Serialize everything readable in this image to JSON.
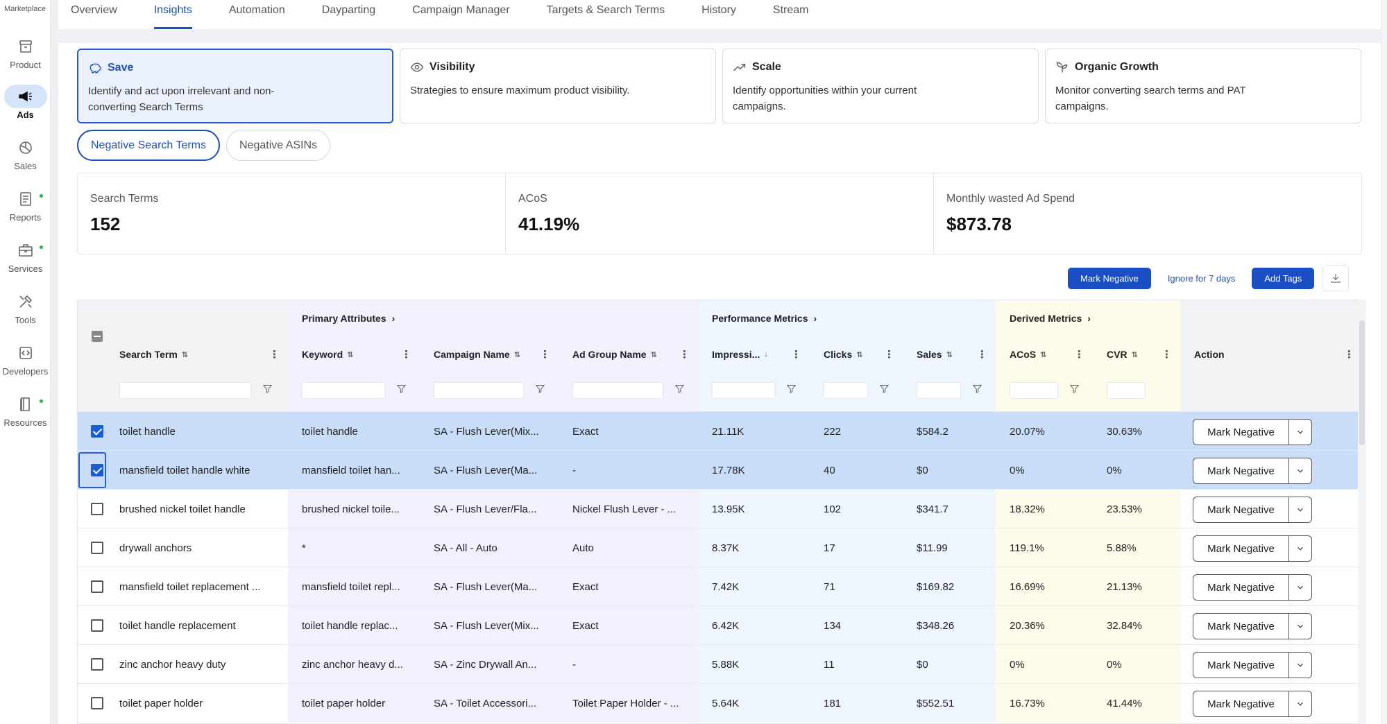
{
  "sidebar": {
    "top_label": "Marketplace",
    "items": [
      {
        "label": "Product",
        "icon": "archive-box-icon",
        "active": false,
        "dot": false
      },
      {
        "label": "Ads",
        "icon": "megaphone-icon",
        "active": true,
        "dot": false
      },
      {
        "label": "Sales",
        "icon": "pie-chart-icon",
        "active": false,
        "dot": false
      },
      {
        "label": "Reports",
        "icon": "report-icon",
        "active": false,
        "dot": true
      },
      {
        "label": "Services",
        "icon": "briefcase-icon",
        "active": false,
        "dot": true
      },
      {
        "label": "Tools",
        "icon": "tools-icon",
        "active": false,
        "dot": false
      },
      {
        "label": "Developers",
        "icon": "code-icon",
        "active": false,
        "dot": false
      },
      {
        "label": "Resources",
        "icon": "book-icon",
        "active": false,
        "dot": true
      }
    ],
    "dot_color": "#2bb24c"
  },
  "tabs": [
    {
      "label": "Overview",
      "active": false
    },
    {
      "label": "Insights",
      "active": true
    },
    {
      "label": "Automation",
      "active": false
    },
    {
      "label": "Dayparting",
      "active": false
    },
    {
      "label": "Campaign Manager",
      "active": false
    },
    {
      "label": "Targets & Search Terms",
      "active": false
    },
    {
      "label": "History",
      "active": false
    },
    {
      "label": "Stream",
      "active": false
    }
  ],
  "strategy_cards": [
    {
      "title": "Save",
      "description": "Identify and act upon irrelevant and non-converting Search Terms",
      "icon": "piggy-bank-icon",
      "active": true
    },
    {
      "title": "Visibility",
      "description": "Strategies to ensure maximum product visibility.",
      "icon": "eye-icon",
      "active": false
    },
    {
      "title": "Scale",
      "description": "Identify opportunities within your current campaigns.",
      "icon": "trending-up-icon",
      "active": false
    },
    {
      "title": "Organic Growth",
      "description": "Monitor converting search terms and PAT campaigns.",
      "icon": "sprout-icon",
      "active": false
    }
  ],
  "sub_tabs": [
    {
      "label": "Negative Search Terms",
      "active": true
    },
    {
      "label": "Negative ASINs",
      "active": false
    }
  ],
  "stats": [
    {
      "label": "Search Terms",
      "value": "152"
    },
    {
      "label": "ACoS",
      "value": "41.19%"
    },
    {
      "label": "Monthly wasted Ad Spend",
      "value": "$873.78"
    }
  ],
  "toolbar": {
    "mark_negative": "Mark Negative",
    "ignore": "Ignore for 7 days",
    "add_tags": "Add Tags"
  },
  "table": {
    "groups": [
      {
        "label": "Primary Attributes",
        "color": "#f3f0fd"
      },
      {
        "label": "Performance Metrics",
        "color": "#eef5fd"
      },
      {
        "label": "Derived Metrics",
        "color": "#fdfbe9"
      }
    ],
    "columns": [
      "Search Term",
      "Keyword",
      "Campaign Name",
      "Ad Group Name",
      "Impressi...",
      "Clicks",
      "Sales",
      "ACoS",
      "CVR",
      "Action"
    ],
    "action_label": "Mark Negative",
    "rows": [
      {
        "search_term": "toilet handle",
        "keyword": "toilet handle",
        "campaign": "SA - Flush Lever(Mix...",
        "ad_group": "Exact",
        "impressions": "21.11K",
        "clicks": "222",
        "sales": "$584.2",
        "acos": "20.07%",
        "cvr": "30.63%",
        "checked": true
      },
      {
        "search_term": "mansfield toilet handle white",
        "keyword": "mansfield toilet han...",
        "campaign": "SA - Flush Lever(Ma...",
        "ad_group": "-",
        "impressions": "17.78K",
        "clicks": "40",
        "sales": "$0",
        "acos": "0%",
        "cvr": "0%",
        "checked": true
      },
      {
        "search_term": "brushed nickel toilet handle",
        "keyword": "brushed nickel toile...",
        "campaign": "SA - Flush Lever/Fla...",
        "ad_group": "Nickel Flush Lever - ...",
        "impressions": "13.95K",
        "clicks": "102",
        "sales": "$341.7",
        "acos": "18.32%",
        "cvr": "23.53%",
        "checked": false
      },
      {
        "search_term": "drywall anchors",
        "keyword": "*",
        "campaign": "SA - All - Auto",
        "ad_group": "Auto",
        "impressions": "8.37K",
        "clicks": "17",
        "sales": "$11.99",
        "acos": "119.1%",
        "cvr": "5.88%",
        "checked": false
      },
      {
        "search_term": "mansfield toilet replacement ...",
        "keyword": "mansfield toilet repl...",
        "campaign": "SA - Flush Lever(Ma...",
        "ad_group": "Exact",
        "impressions": "7.42K",
        "clicks": "71",
        "sales": "$169.82",
        "acos": "16.69%",
        "cvr": "21.13%",
        "checked": false
      },
      {
        "search_term": "toilet handle replacement",
        "keyword": "toilet handle replac...",
        "campaign": "SA - Flush Lever(Mix...",
        "ad_group": "Exact",
        "impressions": "6.42K",
        "clicks": "134",
        "sales": "$348.26",
        "acos": "20.36%",
        "cvr": "32.84%",
        "checked": false
      },
      {
        "search_term": "zinc anchor heavy duty",
        "keyword": "zinc anchor heavy d...",
        "campaign": "SA - Zinc Drywall An...",
        "ad_group": "-",
        "impressions": "5.88K",
        "clicks": "11",
        "sales": "$0",
        "acos": "0%",
        "cvr": "0%",
        "checked": false
      },
      {
        "search_term": "toilet paper holder",
        "keyword": "toilet paper holder",
        "campaign": "SA - Toilet Accessori...",
        "ad_group": "Toilet Paper Holder - ...",
        "impressions": "5.64K",
        "clicks": "181",
        "sales": "$552.51",
        "acos": "16.73%",
        "cvr": "41.44%",
        "checked": false
      }
    ]
  },
  "colors": {
    "accent": "#1f4fb8",
    "selected_row": "#c9ddf8",
    "primary_button": "#1a4fc4"
  }
}
